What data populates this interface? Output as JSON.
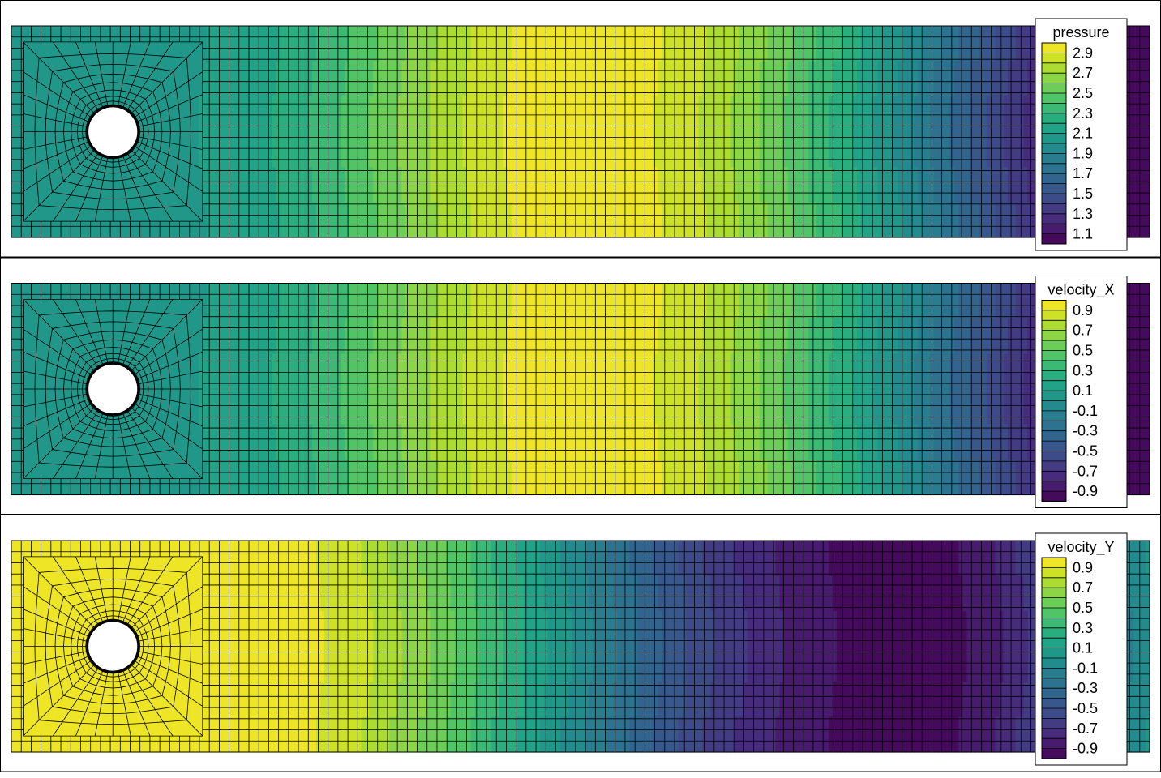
{
  "chart_data": [
    {
      "type": "heatmap",
      "title": "",
      "legend": {
        "title": "pressure",
        "placement": "top-right",
        "ticks": [
          "2.9",
          "2.7",
          "2.5",
          "2.3",
          "2.1",
          "1.9",
          "1.7",
          "1.5",
          "1.3",
          "1.1"
        ],
        "range": [
          1.0,
          3.0
        ],
        "levels": 20
      },
      "field_profile": [
        {
          "x": 0.0,
          "value": 2.02
        },
        {
          "x": 0.05,
          "value": 2.03
        },
        {
          "x": 0.1,
          "value": 2.05
        },
        {
          "x": 0.15,
          "value": 2.08
        },
        {
          "x": 0.2,
          "value": 2.12
        },
        {
          "x": 0.25,
          "value": 2.22
        },
        {
          "x": 0.3,
          "value": 2.4
        },
        {
          "x": 0.35,
          "value": 2.6
        },
        {
          "x": 0.4,
          "value": 2.78
        },
        {
          "x": 0.45,
          "value": 2.92
        },
        {
          "x": 0.5,
          "value": 2.97
        },
        {
          "x": 0.55,
          "value": 2.95
        },
        {
          "x": 0.6,
          "value": 2.85
        },
        {
          "x": 0.65,
          "value": 2.68
        },
        {
          "x": 0.7,
          "value": 2.45
        },
        {
          "x": 0.75,
          "value": 2.2
        },
        {
          "x": 0.8,
          "value": 1.92
        },
        {
          "x": 0.85,
          "value": 1.62
        },
        {
          "x": 0.9,
          "value": 1.3
        },
        {
          "x": 0.95,
          "value": 1.08
        },
        {
          "x": 1.0,
          "value": 1.02
        }
      ]
    },
    {
      "type": "heatmap",
      "title": "",
      "legend": {
        "title": "velocity_X",
        "placement": "top-right",
        "ticks": [
          "0.9",
          "0.7",
          "0.5",
          "0.3",
          "0.1",
          "-0.1",
          "-0.3",
          "-0.5",
          "-0.7",
          "-0.9"
        ],
        "range": [
          -1.0,
          1.0
        ],
        "levels": 20
      },
      "field_profile": [
        {
          "x": 0.0,
          "value": 0.02
        },
        {
          "x": 0.05,
          "value": 0.03
        },
        {
          "x": 0.1,
          "value": 0.05
        },
        {
          "x": 0.15,
          "value": 0.08
        },
        {
          "x": 0.2,
          "value": 0.12
        },
        {
          "x": 0.25,
          "value": 0.22
        },
        {
          "x": 0.3,
          "value": 0.4
        },
        {
          "x": 0.35,
          "value": 0.6
        },
        {
          "x": 0.4,
          "value": 0.78
        },
        {
          "x": 0.45,
          "value": 0.92
        },
        {
          "x": 0.5,
          "value": 0.97
        },
        {
          "x": 0.55,
          "value": 0.95
        },
        {
          "x": 0.6,
          "value": 0.85
        },
        {
          "x": 0.65,
          "value": 0.68
        },
        {
          "x": 0.7,
          "value": 0.45
        },
        {
          "x": 0.75,
          "value": 0.2
        },
        {
          "x": 0.8,
          "value": -0.08
        },
        {
          "x": 0.85,
          "value": -0.38
        },
        {
          "x": 0.9,
          "value": -0.7
        },
        {
          "x": 0.95,
          "value": -0.92
        },
        {
          "x": 1.0,
          "value": -0.98
        }
      ]
    },
    {
      "type": "heatmap",
      "title": "",
      "legend": {
        "title": "velocity_Y",
        "placement": "top-right",
        "ticks": [
          "0.9",
          "0.7",
          "0.5",
          "0.3",
          "0.1",
          "-0.1",
          "-0.3",
          "-0.5",
          "-0.7",
          "-0.9"
        ],
        "range": [
          -1.0,
          1.0
        ],
        "levels": 20
      },
      "field_profile": [
        {
          "x": 0.0,
          "value": 0.97
        },
        {
          "x": 0.1,
          "value": 0.97
        },
        {
          "x": 0.2,
          "value": 0.96
        },
        {
          "x": 0.25,
          "value": 0.93
        },
        {
          "x": 0.3,
          "value": 0.82
        },
        {
          "x": 0.35,
          "value": 0.62
        },
        {
          "x": 0.4,
          "value": 0.4
        },
        {
          "x": 0.45,
          "value": 0.15
        },
        {
          "x": 0.5,
          "value": -0.1
        },
        {
          "x": 0.55,
          "value": -0.35
        },
        {
          "x": 0.6,
          "value": -0.58
        },
        {
          "x": 0.65,
          "value": -0.76
        },
        {
          "x": 0.7,
          "value": -0.88
        },
        {
          "x": 0.75,
          "value": -0.95
        },
        {
          "x": 0.8,
          "value": -0.96
        },
        {
          "x": 0.85,
          "value": -0.85
        },
        {
          "x": 0.9,
          "value": -0.6
        },
        {
          "x": 0.95,
          "value": -0.25
        },
        {
          "x": 1.0,
          "value": 0.05
        }
      ]
    }
  ],
  "colormap": {
    "name": "viridis",
    "stops": [
      "#440154",
      "#482475",
      "#414487",
      "#355f8d",
      "#2a788e",
      "#21918c",
      "#22a884",
      "#44bf70",
      "#7ad151",
      "#bddf26",
      "#fde725"
    ]
  },
  "domain": {
    "x_range": [
      0,
      12
    ],
    "y_range": [
      0,
      2.2
    ],
    "cylinder": {
      "center": [
        1.07,
        1.1
      ],
      "radius": 0.27
    }
  },
  "mesh": {
    "columns": 115,
    "rows": 19,
    "radial_layers": 9,
    "angular_segments": 32,
    "line_color": "#000000"
  }
}
